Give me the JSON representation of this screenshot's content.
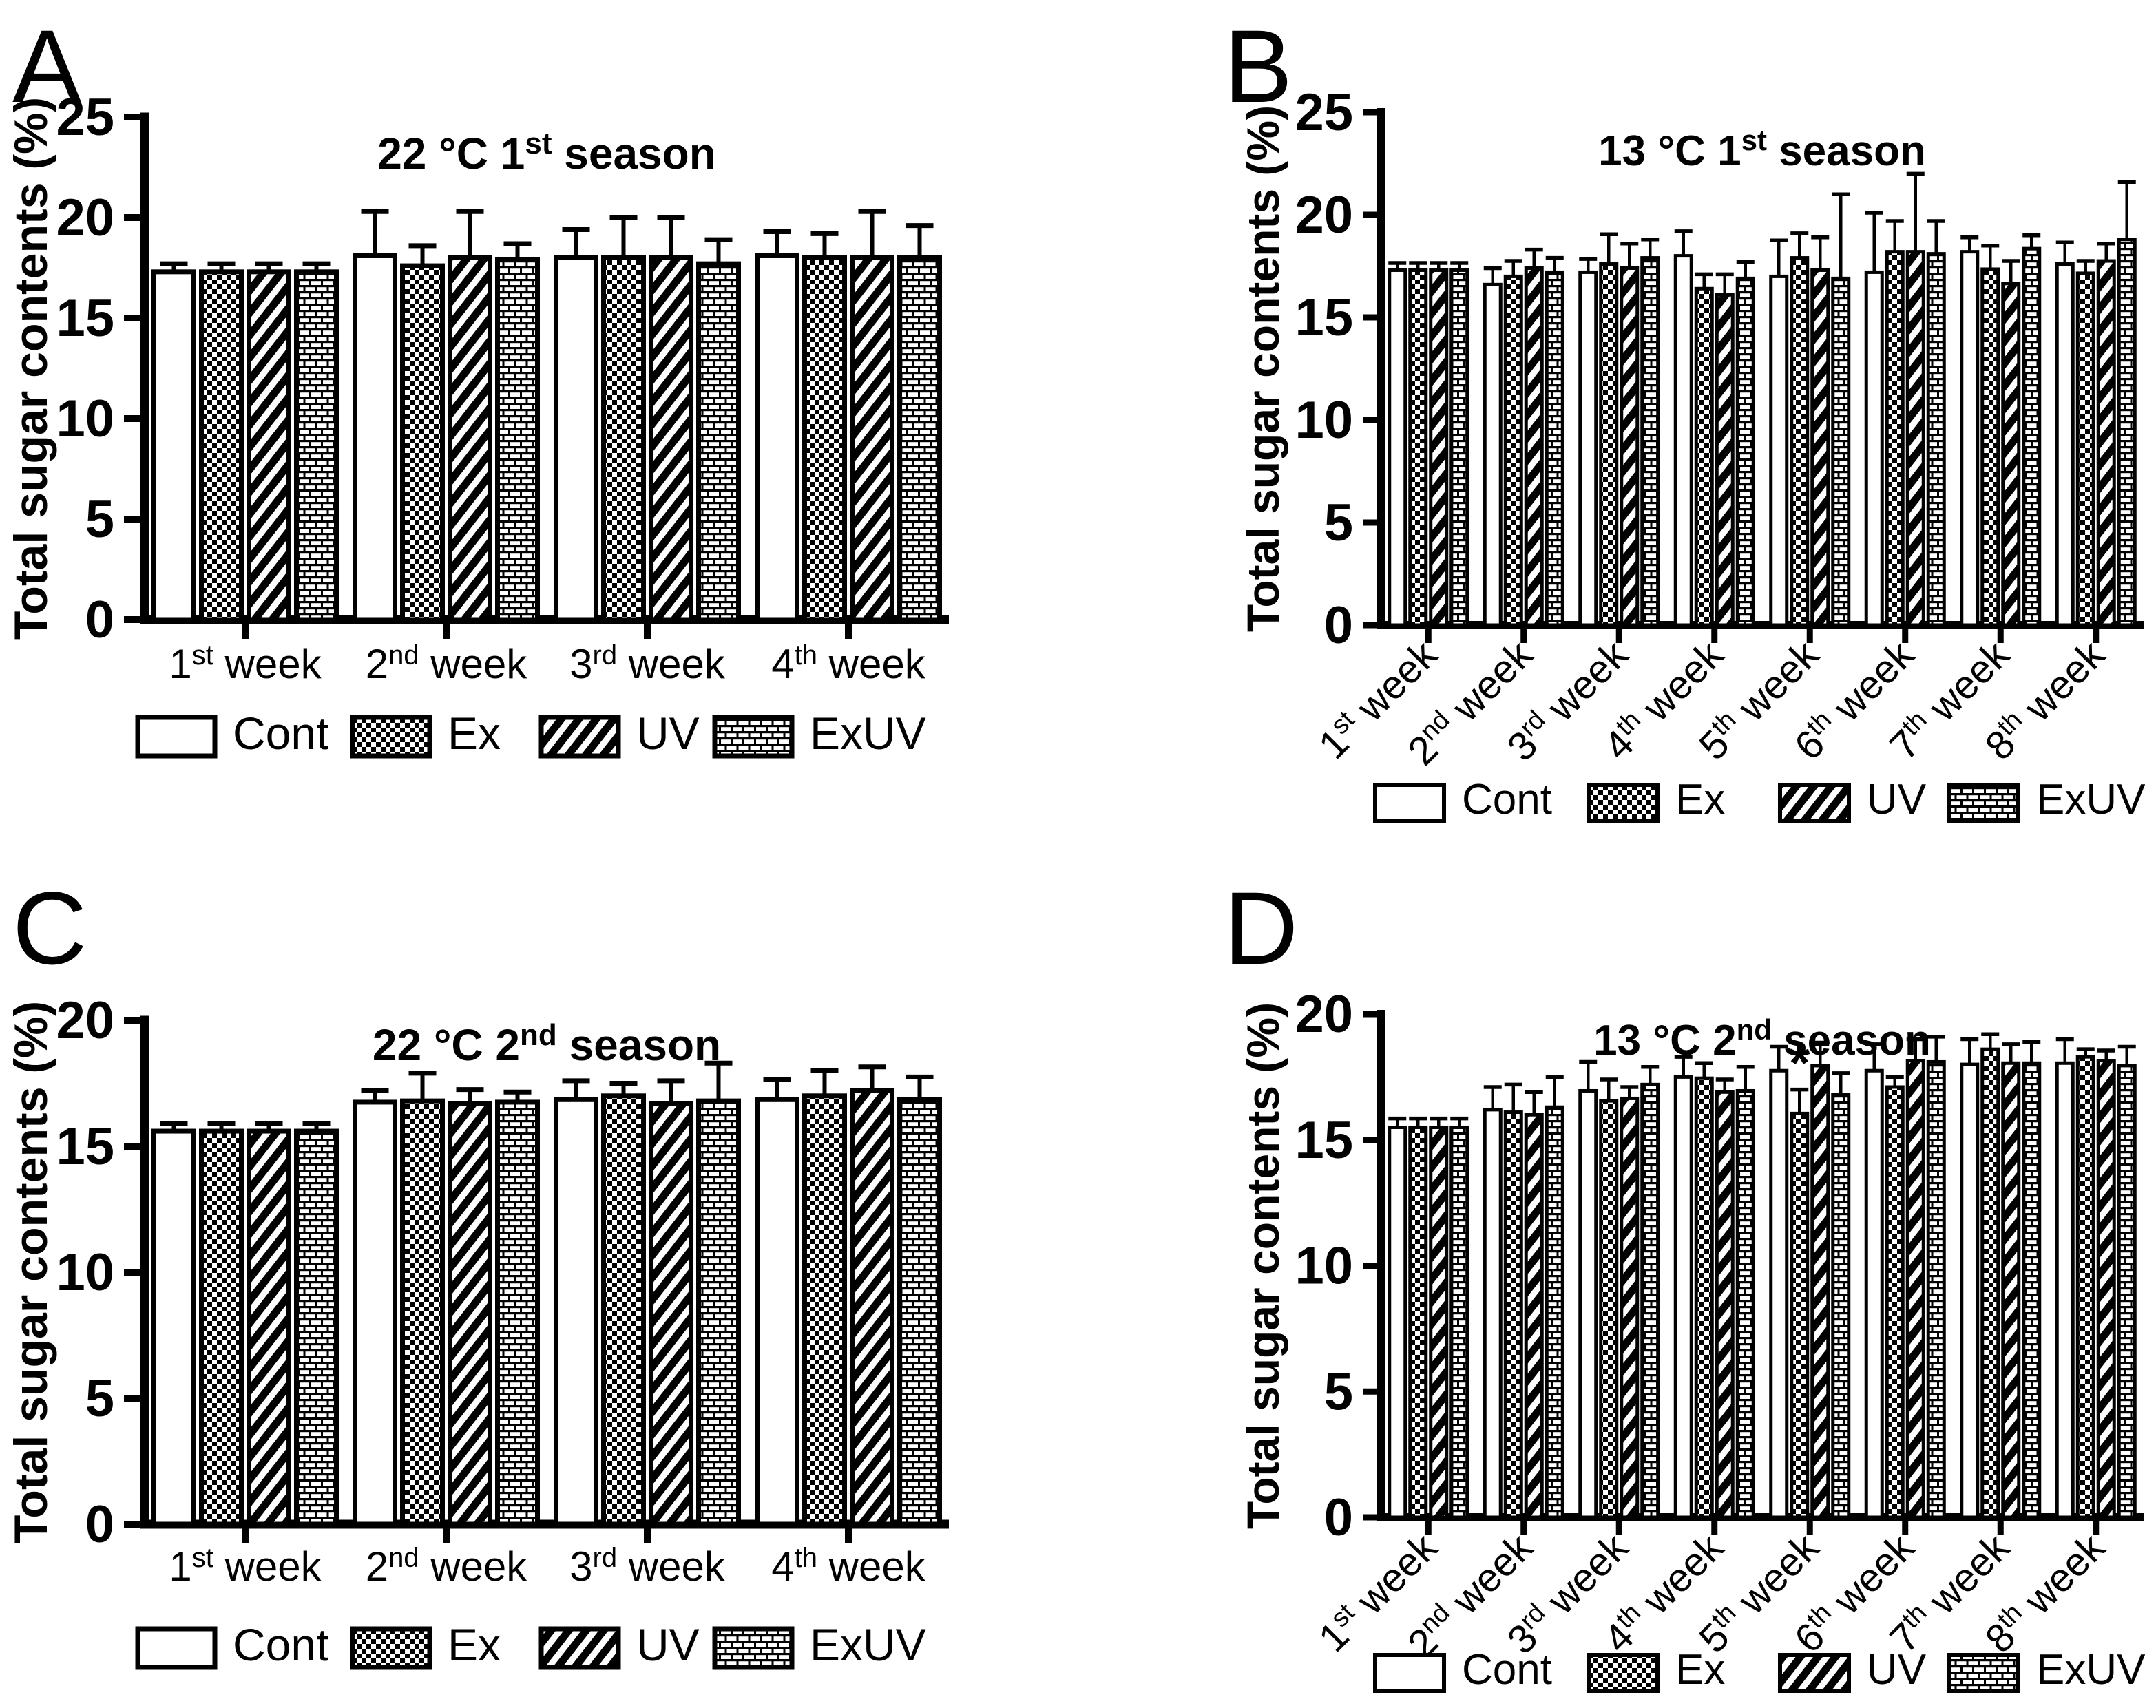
{
  "figure": {
    "background": "#ffffff",
    "ink": "#000000",
    "ylabel": "Total sugar contents  (%)",
    "week_word": " week"
  },
  "legend": {
    "items": [
      {
        "label": "Cont",
        "pattern": "plain"
      },
      {
        "label": "Ex",
        "pattern": "checker"
      },
      {
        "label": "UV",
        "pattern": "diagonal"
      },
      {
        "label": "ExUV",
        "pattern": "brick"
      }
    ]
  },
  "chart_data": [
    {
      "panel": "A",
      "type": "bar",
      "title": {
        "base": "22 °C 1",
        "sup": "st",
        "rest": " season"
      },
      "ylabel": "Total sugar contents  (%)",
      "ylim": [
        0,
        25
      ],
      "yticks": [
        0,
        5,
        10,
        15,
        20,
        25
      ],
      "categories": [
        {
          "n": "1",
          "sup": "st"
        },
        {
          "n": "2",
          "sup": "nd"
        },
        {
          "n": "3",
          "sup": "rd"
        },
        {
          "n": "4",
          "sup": "th"
        }
      ],
      "rotated_xlabels": false,
      "series": [
        {
          "name": "Cont",
          "pattern": "plain",
          "values": [
            17.3,
            18.1,
            18.0,
            18.1
          ],
          "errors": [
            0.4,
            2.2,
            1.4,
            1.2
          ]
        },
        {
          "name": "Ex",
          "pattern": "checker",
          "values": [
            17.3,
            17.6,
            18.0,
            18.0
          ],
          "errors": [
            0.4,
            1.0,
            2.0,
            1.2
          ]
        },
        {
          "name": "UV",
          "pattern": "diagonal",
          "values": [
            17.3,
            18.0,
            18.0,
            18.0
          ],
          "errors": [
            0.4,
            2.3,
            2.0,
            2.3
          ]
        },
        {
          "name": "ExUV",
          "pattern": "brick",
          "values": [
            17.3,
            17.9,
            17.7,
            18.0
          ],
          "errors": [
            0.4,
            0.8,
            1.2,
            1.6
          ]
        }
      ],
      "annotations": []
    },
    {
      "panel": "B",
      "type": "bar",
      "title": {
        "base": "13 °C 1",
        "sup": "st",
        "rest": " season"
      },
      "ylabel": "Total sugar contents  (%)",
      "ylim": [
        0,
        25
      ],
      "yticks": [
        0,
        5,
        10,
        15,
        20,
        25
      ],
      "categories": [
        {
          "n": "1",
          "sup": "st"
        },
        {
          "n": "2",
          "sup": "nd"
        },
        {
          "n": "3",
          "sup": "rd"
        },
        {
          "n": "4",
          "sup": "th"
        },
        {
          "n": "5",
          "sup": "th"
        },
        {
          "n": "6",
          "sup": "th"
        },
        {
          "n": "7",
          "sup": "th"
        },
        {
          "n": "8",
          "sup": "th"
        }
      ],
      "rotated_xlabels": true,
      "series": [
        {
          "name": "Cont",
          "pattern": "plain",
          "values": [
            17.3,
            16.6,
            17.2,
            18.0,
            17.0,
            17.2,
            18.2,
            17.6
          ],
          "errors": [
            0.35,
            0.8,
            0.65,
            1.2,
            1.75,
            2.9,
            0.7,
            1.05
          ]
        },
        {
          "name": "Ex",
          "pattern": "checker",
          "values": [
            17.3,
            17.0,
            17.6,
            16.4,
            17.9,
            18.2,
            17.35,
            17.15
          ],
          "errors": [
            0.35,
            0.75,
            1.45,
            0.7,
            1.2,
            1.5,
            1.15,
            0.6
          ]
        },
        {
          "name": "UV",
          "pattern": "diagonal",
          "values": [
            17.3,
            17.4,
            17.4,
            16.1,
            17.3,
            18.2,
            16.65,
            17.75
          ],
          "errors": [
            0.35,
            0.9,
            1.2,
            1.0,
            1.6,
            3.8,
            1.1,
            0.85
          ]
        },
        {
          "name": "ExUV",
          "pattern": "brick",
          "values": [
            17.3,
            17.2,
            17.9,
            16.9,
            16.9,
            18.1,
            18.35,
            18.8
          ],
          "errors": [
            0.35,
            0.7,
            0.9,
            0.8,
            4.1,
            1.6,
            0.65,
            2.8
          ]
        }
      ],
      "annotations": []
    },
    {
      "panel": "C",
      "type": "bar",
      "title": {
        "base": "22 °C 2",
        "sup": "nd",
        "rest": " season"
      },
      "ylabel": "Total sugar contents  (%)",
      "ylim": [
        0,
        20
      ],
      "yticks": [
        0,
        5,
        10,
        15,
        20
      ],
      "categories": [
        {
          "n": "1",
          "sup": "st"
        },
        {
          "n": "2",
          "sup": "nd"
        },
        {
          "n": "3",
          "sup": "rd"
        },
        {
          "n": "4",
          "sup": "th"
        }
      ],
      "rotated_xlabels": false,
      "series": [
        {
          "name": "Cont",
          "pattern": "plain",
          "values": [
            15.6,
            16.75,
            16.85,
            16.85
          ],
          "errors": [
            0.3,
            0.45,
            0.75,
            0.8
          ]
        },
        {
          "name": "Ex",
          "pattern": "checker",
          "values": [
            15.6,
            16.8,
            17.0,
            17.0
          ],
          "errors": [
            0.3,
            1.1,
            0.5,
            1.0
          ]
        },
        {
          "name": "UV",
          "pattern": "diagonal",
          "values": [
            15.6,
            16.7,
            16.7,
            17.2
          ],
          "errors": [
            0.3,
            0.55,
            0.9,
            0.95
          ]
        },
        {
          "name": "ExUV",
          "pattern": "brick",
          "values": [
            15.6,
            16.75,
            16.8,
            16.85
          ],
          "errors": [
            0.3,
            0.4,
            1.5,
            0.9
          ]
        }
      ],
      "annotations": []
    },
    {
      "panel": "D",
      "type": "bar",
      "title": {
        "base": "13 °C 2",
        "sup": "nd",
        "rest": " season"
      },
      "ylabel": "Total sugar contents  (%)",
      "ylim": [
        0,
        20
      ],
      "yticks": [
        0,
        5,
        10,
        15,
        20
      ],
      "categories": [
        {
          "n": "1",
          "sup": "st"
        },
        {
          "n": "2",
          "sup": "nd"
        },
        {
          "n": "3",
          "sup": "rd"
        },
        {
          "n": "4",
          "sup": "th"
        },
        {
          "n": "5",
          "sup": "th"
        },
        {
          "n": "6",
          "sup": "th"
        },
        {
          "n": "7",
          "sup": "th"
        },
        {
          "n": "8",
          "sup": "th"
        }
      ],
      "rotated_xlabels": true,
      "series": [
        {
          "name": "Cont",
          "pattern": "plain",
          "values": [
            15.5,
            16.2,
            16.95,
            17.5,
            17.75,
            17.75,
            18.0,
            18.05
          ],
          "errors": [
            0.35,
            0.9,
            1.15,
            0.8,
            0.95,
            1.05,
            1.0,
            0.95
          ]
        },
        {
          "name": "Ex",
          "pattern": "checker",
          "values": [
            15.5,
            16.1,
            16.55,
            17.45,
            16.05,
            17.1,
            18.6,
            18.3
          ],
          "errors": [
            0.35,
            1.1,
            0.85,
            0.6,
            0.95,
            0.4,
            0.6,
            0.3
          ]
        },
        {
          "name": "UV",
          "pattern": "diagonal",
          "values": [
            15.5,
            16.0,
            16.65,
            16.9,
            17.95,
            18.15,
            18.05,
            18.15
          ],
          "errors": [
            0.35,
            0.9,
            0.45,
            0.5,
            0.85,
            0.85,
            0.75,
            0.4
          ]
        },
        {
          "name": "ExUV",
          "pattern": "brick",
          "values": [
            15.5,
            16.3,
            17.2,
            16.95,
            16.8,
            18.1,
            18.05,
            17.95
          ],
          "errors": [
            0.35,
            1.2,
            0.7,
            0.95,
            0.85,
            1.0,
            0.85,
            0.75
          ]
        }
      ],
      "annotations": [
        {
          "series": 1,
          "group": 4,
          "text": "*"
        }
      ]
    }
  ]
}
